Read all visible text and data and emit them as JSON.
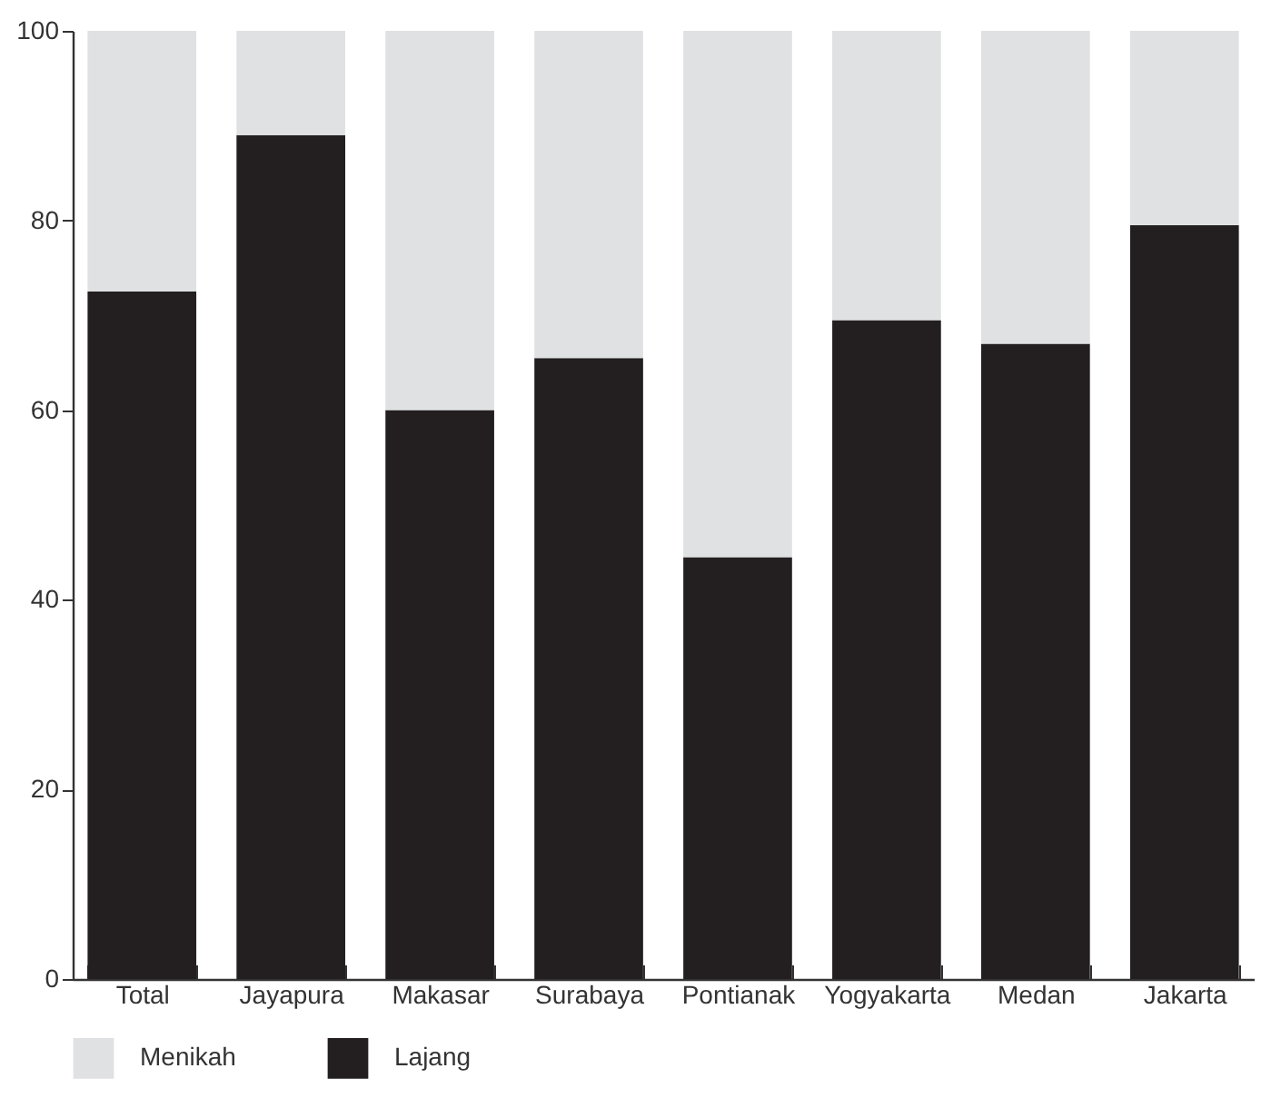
{
  "chart_data": {
    "type": "bar",
    "stacked": true,
    "categories": [
      "Total",
      "Jayapura",
      "Makasar",
      "Surabaya",
      "Pontianak",
      "Yogyakarta",
      "Medan",
      "Jakarta"
    ],
    "series": [
      {
        "name": "Lajang",
        "color": "#231f20",
        "values": [
          72.5,
          89,
          60,
          65.5,
          44.5,
          69.5,
          67,
          79.5
        ]
      },
      {
        "name": "Menikah",
        "color": "#e0e1e3",
        "values": [
          27.5,
          11,
          40,
          34.5,
          55.5,
          30.5,
          33,
          20.5
        ]
      }
    ],
    "ylim": [
      0,
      100
    ],
    "yticks": [
      0,
      20,
      40,
      60,
      80,
      100
    ],
    "grid": false,
    "legend": "bottom left"
  }
}
